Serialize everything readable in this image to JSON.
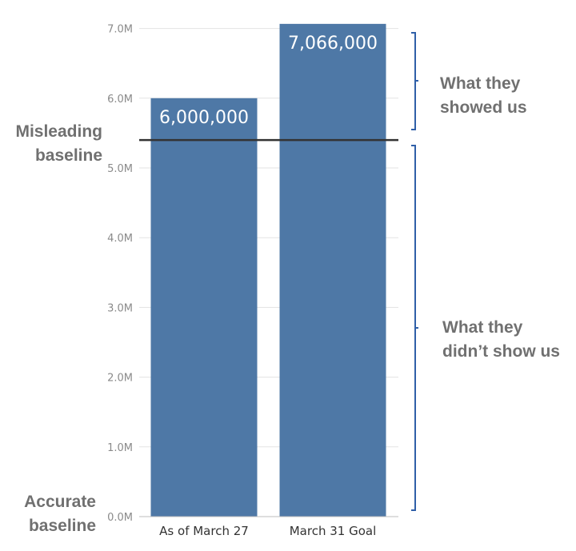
{
  "chart_data": {
    "type": "bar",
    "categories": [
      "As of March 27",
      "March 31 Goal"
    ],
    "values": [
      6000000,
      7066000
    ],
    "data_labels": [
      "6,000,000",
      "7,066,000"
    ],
    "yticks": [
      {
        "value": 0,
        "label": "0.0M"
      },
      {
        "value": 1000000,
        "label": "1.0M"
      },
      {
        "value": 2000000,
        "label": "2.0M"
      },
      {
        "value": 3000000,
        "label": "3.0M"
      },
      {
        "value": 4000000,
        "label": "4.0M"
      },
      {
        "value": 5000000,
        "label": "5.0M"
      },
      {
        "value": 6000000,
        "label": "6.0M"
      },
      {
        "value": 7000000,
        "label": "7.0M"
      }
    ],
    "ylim": [
      0,
      7000000
    ],
    "grid": true,
    "misleading_baseline_value": 5400000,
    "annotations": {
      "misleading_baseline": [
        "Misleading",
        "baseline"
      ],
      "accurate_baseline": [
        "Accurate",
        "baseline"
      ],
      "showed": [
        "What they",
        "showed us"
      ],
      "not_showed": [
        "What they",
        "didn’t show us"
      ]
    },
    "colors": {
      "bar": "#4e78a6",
      "baseline_line": "#333333",
      "bracket": "#2f5fa8",
      "grid": "#e3e3e3"
    }
  }
}
